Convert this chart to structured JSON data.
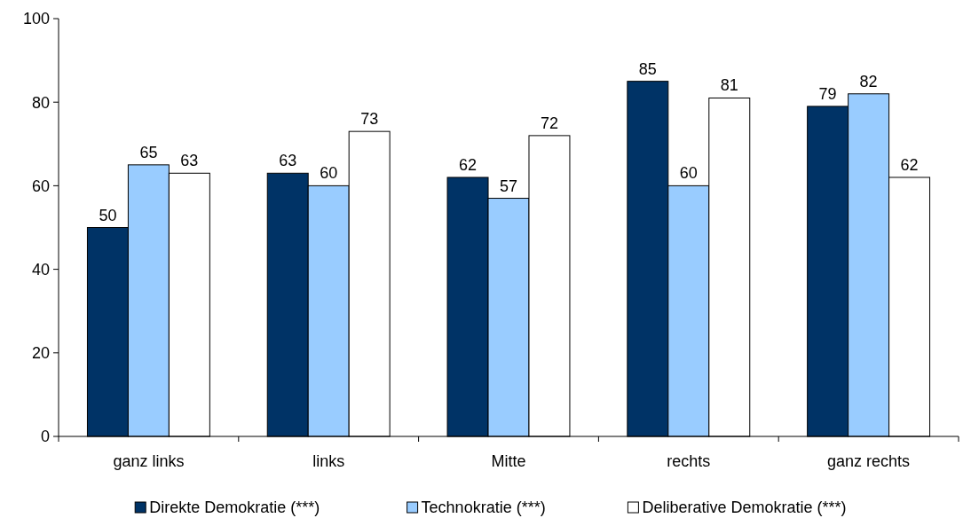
{
  "chart_data": {
    "type": "bar",
    "categories": [
      "ganz links",
      "links",
      "Mitte",
      "rechts",
      "ganz rechts"
    ],
    "series": [
      {
        "name": "Direkte Demokratie (***)",
        "color": "#003366",
        "values": [
          50,
          63,
          62,
          85,
          79
        ]
      },
      {
        "name": "Technokratie (***)",
        "color": "#99ccff",
        "values": [
          65,
          60,
          57,
          60,
          82
        ]
      },
      {
        "name": "Deliberative Demokratie (***)",
        "color": "#ffffff",
        "values": [
          63,
          73,
          72,
          81,
          62
        ]
      }
    ],
    "ylim": [
      0,
      100
    ],
    "yticks": [
      0,
      20,
      40,
      60,
      80,
      100
    ],
    "grid": false,
    "legend": "bottom",
    "data_labels": true
  }
}
